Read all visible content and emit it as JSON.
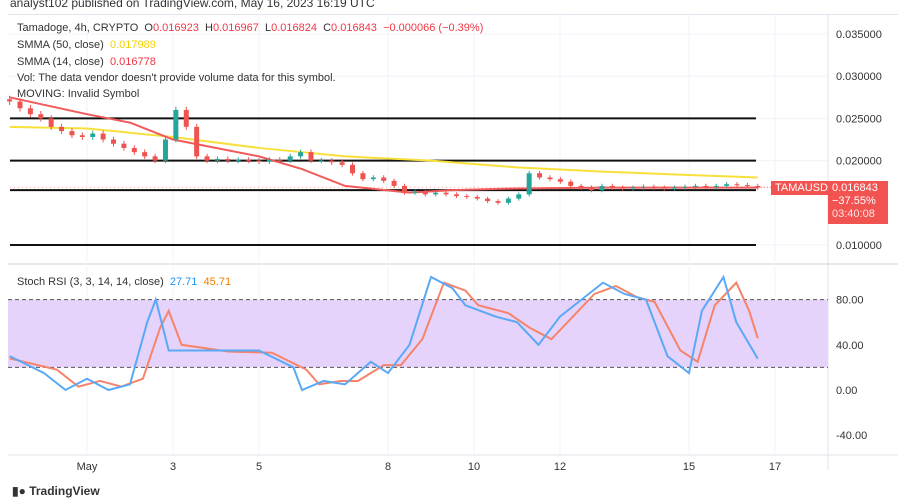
{
  "publisher": "analyst102 published on TradingView.com, May 16, 2023 16:19 UTC",
  "header": {
    "symbol": "Tamadoge, 4h, CRYPTO",
    "o_label": "O",
    "o": "0.016923",
    "h_label": "H",
    "h": "0.016967",
    "l_label": "L",
    "l": "0.016824",
    "c_label": "C",
    "c": "0.016843",
    "change": "−0.000066 (−0.39%)"
  },
  "smma50": {
    "label": "SMMA (50, close)",
    "value": "0.017989"
  },
  "smma14": {
    "label": "SMMA (14, close)",
    "value": "0.016778"
  },
  "vol_note": "Vol: The data vendor doesn't provide volume data for this symbol.",
  "moving_note": "MOVING: Invalid Symbol",
  "price_tag": {
    "symbol": "TAMAUSD",
    "price": "0.016843",
    "change": "−37.55%",
    "countdown": "03:40:08"
  },
  "stoch": {
    "label": "Stoch RSI (3, 3, 14, 14, close)",
    "k": "27.71",
    "d": "45.71"
  },
  "brand": "TradingView",
  "colors": {
    "up": "#26a69a",
    "down": "#ef5350",
    "smma50": "#f7e03c",
    "smma14": "#f05a5a",
    "k": "#5aa9f5",
    "d": "#f5846a",
    "band": "#e6d3fb"
  },
  "chart_data": {
    "type": "candlestick",
    "price_axis": {
      "ticks": [
        "0.035000",
        "0.030000",
        "0.025000",
        "0.020000",
        "0.010000"
      ],
      "range": [
        0.01,
        0.035
      ]
    },
    "x_ticks": [
      {
        "label": "May",
        "day": 1
      },
      {
        "label": "3",
        "day": 3
      },
      {
        "label": "5",
        "day": 5
      },
      {
        "label": "8",
        "day": 8
      },
      {
        "label": "10",
        "day": 10
      },
      {
        "label": "12",
        "day": 12
      },
      {
        "label": "15",
        "day": 15
      },
      {
        "label": "17",
        "day": 17
      }
    ],
    "start_day": -0.8,
    "end_day": 16.6,
    "closes": [
      0.027,
      0.0262,
      0.0255,
      0.025,
      0.024,
      0.0235,
      0.023,
      0.0228,
      0.0232,
      0.0225,
      0.022,
      0.0215,
      0.021,
      0.0205,
      0.02,
      0.0225,
      0.026,
      0.024,
      0.0205,
      0.02,
      0.0202,
      0.02,
      0.0201,
      0.02,
      0.0199,
      0.0201,
      0.02,
      0.0205,
      0.021,
      0.02,
      0.02,
      0.0198,
      0.0195,
      0.0185,
      0.0178,
      0.018,
      0.0176,
      0.017,
      0.0162,
      0.0163,
      0.016,
      0.0162,
      0.016,
      0.0158,
      0.0157,
      0.0155,
      0.0152,
      0.015,
      0.0155,
      0.016,
      0.0185,
      0.018,
      0.0178,
      0.0175,
      0.017,
      0.0168,
      0.0165,
      0.017,
      0.0168,
      0.0167,
      0.0168,
      0.0169,
      0.0168,
      0.0167,
      0.0168,
      0.0169,
      0.017,
      0.0169,
      0.017,
      0.0172,
      0.0171,
      0.017,
      0.0168
    ],
    "levels": [
      0.025,
      0.02,
      0.0165,
      0.01
    ],
    "smma50": [
      [
        -0.8,
        0.024
      ],
      [
        1,
        0.0238
      ],
      [
        3,
        0.0228
      ],
      [
        5,
        0.0215
      ],
      [
        7,
        0.0205
      ],
      [
        9,
        0.02
      ],
      [
        11,
        0.0192
      ],
      [
        13,
        0.0187
      ],
      [
        15,
        0.0183
      ],
      [
        16.6,
        0.018
      ]
    ],
    "smma14": [
      [
        -0.8,
        0.0275
      ],
      [
        1,
        0.0255
      ],
      [
        2,
        0.0245
      ],
      [
        3,
        0.0225
      ],
      [
        5,
        0.0205
      ],
      [
        6,
        0.019
      ],
      [
        7,
        0.017
      ],
      [
        8.5,
        0.0162
      ],
      [
        9.5,
        0.0165
      ],
      [
        11,
        0.0167
      ],
      [
        13,
        0.0168
      ],
      [
        16.6,
        0.0168
      ]
    ],
    "stoch_axis": {
      "ticks": [
        "80.00",
        "40.00",
        "0.00",
        "-40.00"
      ],
      "values": [
        80,
        40,
        0,
        -40
      ],
      "band": [
        20,
        80
      ]
    },
    "k": [
      [
        -0.8,
        30
      ],
      [
        0,
        15
      ],
      [
        0.5,
        0
      ],
      [
        1,
        10
      ],
      [
        1.5,
        0
      ],
      [
        2,
        5
      ],
      [
        2.4,
        60
      ],
      [
        2.6,
        80
      ],
      [
        2.9,
        35
      ],
      [
        4,
        35
      ],
      [
        5,
        35
      ],
      [
        5.8,
        20
      ],
      [
        6,
        0
      ],
      [
        6.5,
        8
      ],
      [
        7,
        5
      ],
      [
        7.6,
        25
      ],
      [
        8,
        15
      ],
      [
        8.5,
        40
      ],
      [
        9,
        100
      ],
      [
        9.5,
        90
      ],
      [
        9.8,
        75
      ],
      [
        10.5,
        65
      ],
      [
        11,
        60
      ],
      [
        11.5,
        40
      ],
      [
        12,
        65
      ],
      [
        12.5,
        80
      ],
      [
        13,
        95
      ],
      [
        13.5,
        85
      ],
      [
        14,
        80
      ],
      [
        14.5,
        30
      ],
      [
        15,
        15
      ],
      [
        15.3,
        70
      ],
      [
        15.8,
        100
      ],
      [
        16.1,
        60
      ],
      [
        16.6,
        27.71
      ]
    ],
    "d": [
      [
        -0.8,
        28
      ],
      [
        0.3,
        18
      ],
      [
        0.8,
        3
      ],
      [
        1.3,
        8
      ],
      [
        1.8,
        3
      ],
      [
        2.3,
        10
      ],
      [
        2.7,
        55
      ],
      [
        2.9,
        70
      ],
      [
        3.2,
        40
      ],
      [
        4.3,
        34
      ],
      [
        5.3,
        33
      ],
      [
        6.1,
        18
      ],
      [
        6.4,
        5
      ],
      [
        6.9,
        8
      ],
      [
        7.3,
        8
      ],
      [
        7.9,
        22
      ],
      [
        8.3,
        22
      ],
      [
        8.8,
        45
      ],
      [
        9.3,
        95
      ],
      [
        9.8,
        88
      ],
      [
        10.1,
        75
      ],
      [
        10.8,
        68
      ],
      [
        11.3,
        55
      ],
      [
        11.8,
        45
      ],
      [
        12.3,
        65
      ],
      [
        12.8,
        85
      ],
      [
        13.3,
        92
      ],
      [
        13.8,
        82
      ],
      [
        14.2,
        78
      ],
      [
        14.8,
        35
      ],
      [
        15.2,
        25
      ],
      [
        15.6,
        75
      ],
      [
        16.1,
        95
      ],
      [
        16.4,
        70
      ],
      [
        16.6,
        45.71
      ]
    ]
  }
}
